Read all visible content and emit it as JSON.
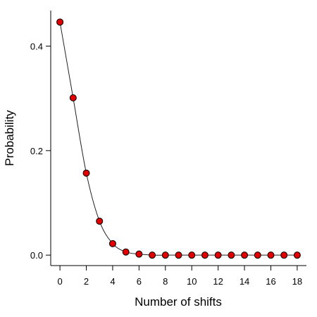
{
  "chart_data": {
    "type": "line",
    "xlabel": "Number of shifts",
    "ylabel": "Probability",
    "x": [
      0,
      1,
      2,
      3,
      4,
      5,
      6,
      7,
      8,
      9,
      10,
      11,
      12,
      13,
      14,
      15,
      16,
      17,
      18
    ],
    "series": [
      {
        "values": [
          0.446,
          0.301,
          0.157,
          0.065,
          0.022,
          0.006,
          0.002,
          0.0,
          0.0,
          0.0,
          0.0,
          0.0,
          0.0,
          0.0,
          0.0,
          0.0,
          0.0,
          0.0,
          0.0
        ],
        "color": "#e00000"
      }
    ],
    "xlim": [
      -0.7,
      18.7
    ],
    "ylim": [
      -0.02,
      0.468
    ],
    "xticks": [
      0,
      2,
      4,
      6,
      8,
      10,
      12,
      14,
      16,
      18
    ],
    "xtick_labels": [
      "0",
      "2",
      "4",
      "6",
      "8",
      "10",
      "12",
      "14",
      "16",
      "18"
    ],
    "yticks": [
      0.0,
      0.2,
      0.4
    ],
    "ytick_labels": [
      "0.0",
      "0.2",
      "0.4"
    ],
    "grid": false,
    "marker": "circle"
  }
}
